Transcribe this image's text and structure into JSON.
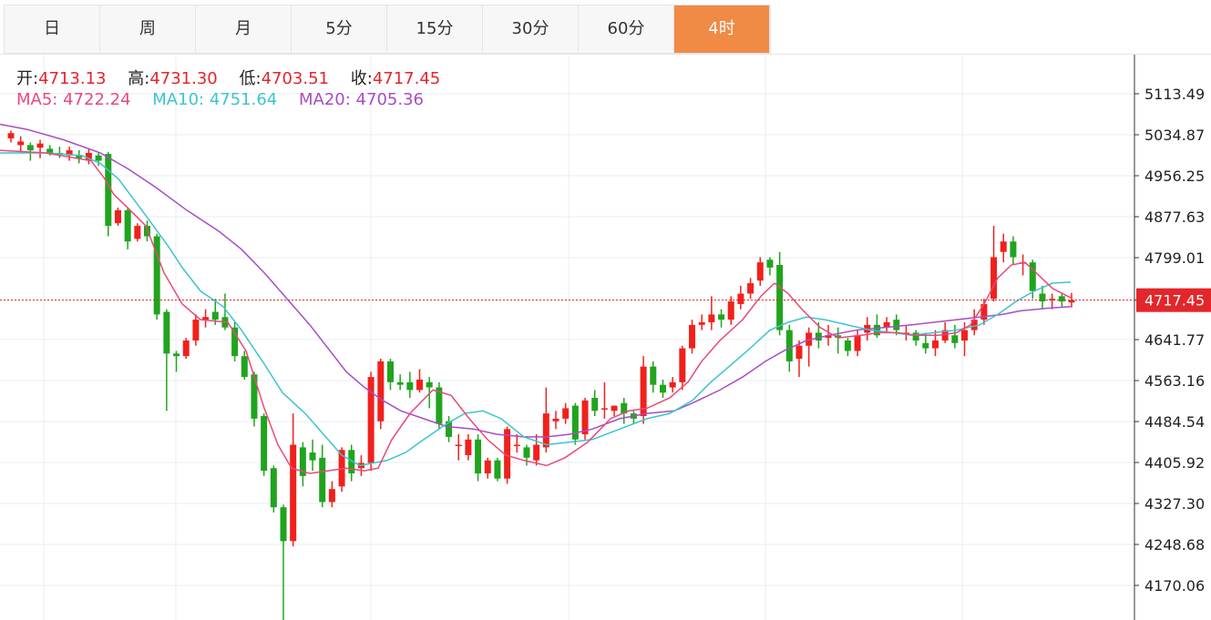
{
  "tabs": [
    {
      "label": "日"
    },
    {
      "label": "周"
    },
    {
      "label": "月"
    },
    {
      "label": "5分"
    },
    {
      "label": "15分"
    },
    {
      "label": "30分"
    },
    {
      "label": "60分"
    },
    {
      "label": "4时",
      "active": true
    }
  ],
  "ohlc": {
    "open_label": "开:",
    "open": "4713.13",
    "high_label": "高:",
    "high": "4731.30",
    "low_label": "低:",
    "low": "4703.51",
    "close_label": "收:",
    "close": "4717.45"
  },
  "ma": {
    "ma5_label": "MA5:",
    "ma5": "4722.24",
    "ma10_label": "MA10:",
    "ma10": "4751.64",
    "ma20_label": "MA20:",
    "ma20": "4705.36"
  },
  "colors": {
    "up": "#f0211c",
    "down": "#20a41e",
    "ma5": "#e8497a",
    "ma10": "#3cc4d0",
    "ma20": "#a94cc4",
    "accent": "#f18a45",
    "price_line": "#e2262a",
    "value_text": "#e2262a"
  },
  "chart_data": {
    "type": "candlestick",
    "y_ticks": [
      "5113.49",
      "5034.87",
      "4956.25",
      "4877.63",
      "4799.01",
      "4717.45",
      "4641.77",
      "4563.16",
      "4484.54",
      "4405.92",
      "4327.30",
      "4248.68",
      "4170.06"
    ],
    "y_range": [
      4091.44,
      5170
    ],
    "last_price": "4717.45",
    "candles": [
      [
        5028,
        5038,
        5020,
        5043
      ],
      [
        5015,
        5022,
        5000,
        5032
      ],
      [
        5015,
        5005,
        4985,
        5020
      ],
      [
        5010,
        5018,
        4990,
        5025
      ],
      [
        5008,
        5000,
        4995,
        5015
      ],
      [
        5000,
        4998,
        4990,
        5012
      ],
      [
        4995,
        5005,
        4985,
        5012
      ],
      [
        4995,
        4990,
        4980,
        5005
      ],
      [
        4985,
        5000,
        4978,
        5008
      ],
      [
        4995,
        4985,
        4975,
        5002
      ],
      [
        4998,
        4860,
        4840,
        5002
      ],
      [
        4865,
        4890,
        4860,
        4895
      ],
      [
        4890,
        4830,
        4815,
        4895
      ],
      [
        4835,
        4860,
        4830,
        4865
      ],
      [
        4860,
        4840,
        4830,
        4870
      ],
      [
        4840,
        4690,
        4680,
        4845
      ],
      [
        4695,
        4615,
        4505,
        4700
      ],
      [
        4615,
        4610,
        4580,
        4620
      ],
      [
        4610,
        4640,
        4605,
        4645
      ],
      [
        4640,
        4680,
        4630,
        4690
      ],
      [
        4680,
        4685,
        4665,
        4700
      ],
      [
        4695,
        4680,
        4670,
        4720
      ],
      [
        4685,
        4665,
        4660,
        4730
      ],
      [
        4665,
        4610,
        4600,
        4675
      ],
      [
        4610,
        4570,
        4565,
        4620
      ],
      [
        4575,
        4490,
        4475,
        4580
      ],
      [
        4495,
        4390,
        4380,
        4500
      ],
      [
        4395,
        4320,
        4310,
        4400
      ],
      [
        4320,
        4255,
        4095,
        4325
      ],
      [
        4255,
        4440,
        4245,
        4500
      ],
      [
        4435,
        4380,
        4360,
        4445
      ],
      [
        4425,
        4410,
        4390,
        4450
      ],
      [
        4415,
        4330,
        4320,
        4440
      ],
      [
        4330,
        4355,
        4320,
        4370
      ],
      [
        4360,
        4430,
        4350,
        4435
      ],
      [
        4430,
        4385,
        4370,
        4440
      ],
      [
        4395,
        4405,
        4380,
        4420
      ],
      [
        4405,
        4570,
        4390,
        4580
      ],
      [
        4485,
        4600,
        4470,
        4605
      ],
      [
        4600,
        4560,
        4545,
        4605
      ],
      [
        4560,
        4555,
        4545,
        4575
      ],
      [
        4560,
        4545,
        4530,
        4580
      ],
      [
        4545,
        4565,
        4540,
        4585
      ],
      [
        4560,
        4550,
        4510,
        4570
      ],
      [
        4550,
        4480,
        4470,
        4560
      ],
      [
        4485,
        4455,
        4445,
        4495
      ],
      [
        4440,
        4440,
        4410,
        4460
      ],
      [
        4420,
        4450,
        4410,
        4460
      ],
      [
        4450,
        4385,
        4370,
        4460
      ],
      [
        4385,
        4410,
        4375,
        4415
      ],
      [
        4410,
        4375,
        4370,
        4415
      ],
      [
        4375,
        4470,
        4365,
        4475
      ],
      [
        4440,
        4440,
        4425,
        4460
      ],
      [
        4435,
        4415,
        4400,
        4440
      ],
      [
        4410,
        4440,
        4400,
        4460
      ],
      [
        4435,
        4500,
        4425,
        4550
      ],
      [
        4485,
        4490,
        4470,
        4505
      ],
      [
        4490,
        4510,
        4480,
        4520
      ],
      [
        4515,
        4450,
        4440,
        4520
      ],
      [
        4460,
        4525,
        4450,
        4530
      ],
      [
        4530,
        4505,
        4495,
        4545
      ],
      [
        4510,
        4510,
        4490,
        4560
      ],
      [
        4505,
        4515,
        4495,
        4515
      ],
      [
        4520,
        4500,
        4480,
        4530
      ],
      [
        4500,
        4490,
        4480,
        4505
      ],
      [
        4495,
        4590,
        4480,
        4610
      ],
      [
        4590,
        4555,
        4540,
        4600
      ],
      [
        4555,
        4540,
        4530,
        4565
      ],
      [
        4550,
        4560,
        4540,
        4570
      ],
      [
        4560,
        4625,
        4545,
        4630
      ],
      [
        4625,
        4670,
        4615,
        4680
      ],
      [
        4670,
        4675,
        4660,
        4690
      ],
      [
        4675,
        4690,
        4660,
        4725
      ],
      [
        4690,
        4680,
        4665,
        4700
      ],
      [
        4680,
        4715,
        4670,
        4725
      ],
      [
        4710,
        4730,
        4700,
        4745
      ],
      [
        4730,
        4750,
        4720,
        4760
      ],
      [
        4755,
        4790,
        4745,
        4800
      ],
      [
        4795,
        4780,
        4765,
        4800
      ],
      [
        4785,
        4660,
        4650,
        4810
      ],
      [
        4660,
        4600,
        4580,
        4670
      ],
      [
        4605,
        4630,
        4570,
        4640
      ],
      [
        4630,
        4655,
        4590,
        4665
      ],
      [
        4655,
        4640,
        4625,
        4675
      ],
      [
        4645,
        4650,
        4630,
        4670
      ],
      [
        4650,
        4645,
        4615,
        4665
      ],
      [
        4640,
        4620,
        4610,
        4645
      ],
      [
        4620,
        4650,
        4610,
        4660
      ],
      [
        4655,
        4670,
        4640,
        4685
      ],
      [
        4670,
        4650,
        4645,
        4690
      ],
      [
        4665,
        4675,
        4655,
        4685
      ],
      [
        4680,
        4660,
        4650,
        4690
      ],
      [
        4655,
        4655,
        4640,
        4670
      ],
      [
        4655,
        4640,
        4630,
        4660
      ],
      [
        4635,
        4625,
        4615,
        4655
      ],
      [
        4625,
        4640,
        4610,
        4660
      ],
      [
        4640,
        4660,
        4635,
        4675
      ],
      [
        4650,
        4635,
        4625,
        4670
      ],
      [
        4640,
        4660,
        4610,
        4675
      ],
      [
        4660,
        4680,
        4650,
        4700
      ],
      [
        4680,
        4710,
        4670,
        4720
      ],
      [
        4720,
        4800,
        4715,
        4860
      ],
      [
        4810,
        4830,
        4790,
        4845
      ],
      [
        4830,
        4800,
        4785,
        4840
      ],
      [
        4790,
        4790,
        4765,
        4805
      ],
      [
        4790,
        4735,
        4720,
        4795
      ],
      [
        4730,
        4715,
        4700,
        4745
      ],
      [
        4720,
        4720,
        4700,
        4730
      ],
      [
        4725,
        4715,
        4705,
        4730
      ],
      [
        4713.13,
        4717.45,
        4703.51,
        4731.3
      ]
    ],
    "ma5": [
      [
        0,
        5005
      ],
      [
        50,
        5000
      ],
      [
        100,
        4985
      ],
      [
        115,
        4950
      ],
      [
        125,
        4920
      ],
      [
        140,
        4895
      ],
      [
        160,
        4860
      ],
      [
        180,
        4770
      ],
      [
        200,
        4710
      ],
      [
        220,
        4680
      ],
      [
        250,
        4675
      ],
      [
        270,
        4620
      ],
      [
        290,
        4510
      ],
      [
        305,
        4440
      ],
      [
        320,
        4395
      ],
      [
        340,
        4385
      ],
      [
        360,
        4390
      ],
      [
        380,
        4395
      ],
      [
        400,
        4390
      ],
      [
        415,
        4395
      ],
      [
        430,
        4450
      ],
      [
        450,
        4500
      ],
      [
        475,
        4545
      ],
      [
        495,
        4535
      ],
      [
        515,
        4490
      ],
      [
        535,
        4450
      ],
      [
        555,
        4420
      ],
      [
        575,
        4410
      ],
      [
        600,
        4400
      ],
      [
        620,
        4415
      ],
      [
        645,
        4445
      ],
      [
        670,
        4490
      ],
      [
        690,
        4505
      ],
      [
        710,
        4510
      ],
      [
        735,
        4530
      ],
      [
        755,
        4560
      ],
      [
        770,
        4600
      ],
      [
        790,
        4640
      ],
      [
        815,
        4680
      ],
      [
        835,
        4725
      ],
      [
        850,
        4750
      ],
      [
        865,
        4730
      ],
      [
        880,
        4700
      ],
      [
        900,
        4665
      ],
      [
        920,
        4645
      ],
      [
        945,
        4650
      ],
      [
        965,
        4655
      ],
      [
        985,
        4655
      ],
      [
        1005,
        4650
      ],
      [
        1030,
        4650
      ],
      [
        1050,
        4655
      ],
      [
        1065,
        4670
      ],
      [
        1080,
        4710
      ],
      [
        1095,
        4760
      ],
      [
        1110,
        4785
      ],
      [
        1125,
        4790
      ],
      [
        1140,
        4765
      ],
      [
        1155,
        4740
      ],
      [
        1175,
        4722
      ]
    ],
    "ma10": [
      [
        0,
        5000
      ],
      [
        50,
        5000
      ],
      [
        90,
        4995
      ],
      [
        110,
        4980
      ],
      [
        130,
        4950
      ],
      [
        160,
        4880
      ],
      [
        185,
        4820
      ],
      [
        200,
        4780
      ],
      [
        220,
        4735
      ],
      [
        245,
        4705
      ],
      [
        265,
        4660
      ],
      [
        290,
        4595
      ],
      [
        310,
        4540
      ],
      [
        335,
        4500
      ],
      [
        355,
        4460
      ],
      [
        375,
        4420
      ],
      [
        395,
        4400
      ],
      [
        410,
        4405
      ],
      [
        425,
        4410
      ],
      [
        445,
        4425
      ],
      [
        465,
        4450
      ],
      [
        490,
        4480
      ],
      [
        510,
        4500
      ],
      [
        530,
        4505
      ],
      [
        550,
        4490
      ],
      [
        575,
        4455
      ],
      [
        600,
        4440
      ],
      [
        625,
        4445
      ],
      [
        650,
        4450
      ],
      [
        680,
        4470
      ],
      [
        710,
        4490
      ],
      [
        735,
        4500
      ],
      [
        760,
        4525
      ],
      [
        780,
        4560
      ],
      [
        800,
        4590
      ],
      [
        820,
        4620
      ],
      [
        845,
        4660
      ],
      [
        865,
        4675
      ],
      [
        885,
        4685
      ],
      [
        905,
        4680
      ],
      [
        930,
        4670
      ],
      [
        955,
        4660
      ],
      [
        980,
        4655
      ],
      [
        1000,
        4650
      ],
      [
        1025,
        4655
      ],
      [
        1050,
        4660
      ],
      [
        1075,
        4670
      ],
      [
        1095,
        4690
      ],
      [
        1115,
        4715
      ],
      [
        1135,
        4735
      ],
      [
        1155,
        4750
      ],
      [
        1175,
        4752
      ]
    ],
    "ma20": [
      [
        0,
        5055
      ],
      [
        30,
        5045
      ],
      [
        70,
        5025
      ],
      [
        110,
        5000
      ],
      [
        140,
        4970
      ],
      [
        170,
        4935
      ],
      [
        205,
        4890
      ],
      [
        240,
        4850
      ],
      [
        265,
        4815
      ],
      [
        290,
        4770
      ],
      [
        315,
        4720
      ],
      [
        340,
        4670
      ],
      [
        360,
        4625
      ],
      [
        380,
        4580
      ],
      [
        400,
        4550
      ],
      [
        420,
        4525
      ],
      [
        440,
        4505
      ],
      [
        465,
        4490
      ],
      [
        490,
        4475
      ],
      [
        520,
        4470
      ],
      [
        545,
        4460
      ],
      [
        575,
        4455
      ],
      [
        600,
        4455
      ],
      [
        625,
        4460
      ],
      [
        650,
        4470
      ],
      [
        680,
        4490
      ],
      [
        710,
        4500
      ],
      [
        740,
        4505
      ],
      [
        760,
        4520
      ],
      [
        790,
        4545
      ],
      [
        815,
        4570
      ],
      [
        840,
        4600
      ],
      [
        860,
        4620
      ],
      [
        885,
        4640
      ],
      [
        910,
        4650
      ],
      [
        940,
        4660
      ],
      [
        970,
        4665
      ],
      [
        1000,
        4670
      ],
      [
        1025,
        4675
      ],
      [
        1050,
        4680
      ],
      [
        1075,
        4685
      ],
      [
        1100,
        4690
      ],
      [
        1120,
        4697
      ],
      [
        1150,
        4702
      ],
      [
        1175,
        4705
      ]
    ]
  }
}
